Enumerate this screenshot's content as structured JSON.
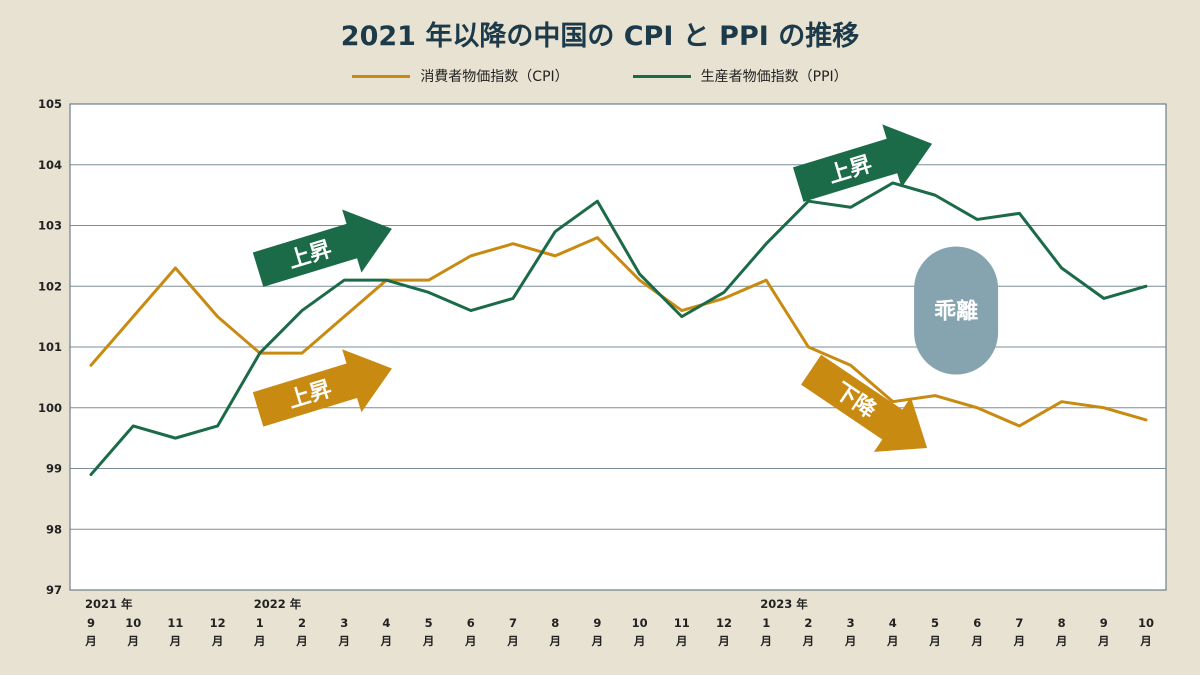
{
  "chart_data": {
    "type": "line",
    "title": "2021 年以降の中国の CPI と PPI の推移",
    "ylim": [
      97,
      105
    ],
    "yticks": [
      97,
      98,
      99,
      100,
      101,
      102,
      103,
      104,
      105
    ],
    "x_labels": [
      {
        "year": "2021 年",
        "month": "9",
        "unit": "月"
      },
      {
        "year": "",
        "month": "10",
        "unit": "月"
      },
      {
        "year": "",
        "month": "11",
        "unit": "月"
      },
      {
        "year": "",
        "month": "12",
        "unit": "月"
      },
      {
        "year": "2022 年",
        "month": "1",
        "unit": "月"
      },
      {
        "year": "",
        "month": "2",
        "unit": "月"
      },
      {
        "year": "",
        "month": "3",
        "unit": "月"
      },
      {
        "year": "",
        "month": "4",
        "unit": "月"
      },
      {
        "year": "",
        "month": "5",
        "unit": "月"
      },
      {
        "year": "",
        "month": "6",
        "unit": "月"
      },
      {
        "year": "",
        "month": "7",
        "unit": "月"
      },
      {
        "year": "",
        "month": "8",
        "unit": "月"
      },
      {
        "year": "",
        "month": "9",
        "unit": "月"
      },
      {
        "year": "",
        "month": "10",
        "unit": "月"
      },
      {
        "year": "",
        "month": "11",
        "unit": "月"
      },
      {
        "year": "",
        "month": "12",
        "unit": "月"
      },
      {
        "year": "2023 年",
        "month": "1",
        "unit": "月"
      },
      {
        "year": "",
        "month": "2",
        "unit": "月"
      },
      {
        "year": "",
        "month": "3",
        "unit": "月"
      },
      {
        "year": "",
        "month": "4",
        "unit": "月"
      },
      {
        "year": "",
        "month": "5",
        "unit": "月"
      },
      {
        "year": "",
        "month": "6",
        "unit": "月"
      },
      {
        "year": "",
        "month": "7",
        "unit": "月"
      },
      {
        "year": "",
        "month": "8",
        "unit": "月"
      },
      {
        "year": "",
        "month": "9",
        "unit": "月"
      },
      {
        "year": "",
        "month": "10",
        "unit": "月"
      }
    ],
    "series": [
      {
        "name": "消費者物価指数（CPI）",
        "color": "#c98a12",
        "values": [
          100.7,
          101.5,
          102.3,
          101.5,
          100.9,
          100.9,
          101.5,
          102.1,
          102.1,
          102.5,
          102.7,
          102.5,
          102.8,
          102.1,
          101.6,
          101.8,
          102.1,
          101.0,
          100.7,
          100.1,
          100.2,
          100.0,
          99.7,
          100.1,
          100.0,
          99.8
        ]
      },
      {
        "name": "生産者物価指数（PPI）",
        "color": "#1b6b48",
        "values": [
          98.9,
          99.7,
          99.5,
          99.7,
          100.9,
          101.6,
          102.1,
          102.1,
          101.9,
          101.6,
          101.8,
          102.9,
          103.4,
          102.2,
          101.5,
          101.9,
          102.7,
          103.4,
          103.3,
          103.7,
          103.5,
          103.1,
          103.2,
          102.3,
          101.8,
          102.0
        ]
      }
    ],
    "grid": true,
    "legend_position": "top-center",
    "annotations": [
      {
        "text": "上昇",
        "type": "arrow-up",
        "color": "#1b6b48",
        "x_index": 5.5,
        "y": 102.6
      },
      {
        "text": "上昇",
        "type": "arrow-up",
        "color": "#c98a12",
        "x_index": 5.5,
        "y": 100.3
      },
      {
        "text": "上昇",
        "type": "arrow-up",
        "color": "#1b6b48",
        "x_index": 18.3,
        "y": 104.0
      },
      {
        "text": "下降",
        "type": "arrow-down",
        "color": "#c98a12",
        "x_index": 18.4,
        "y": 100.0
      },
      {
        "text": "乖離",
        "type": "pill",
        "color": "#86a4b0",
        "x_index": 20.5,
        "y": 101.6
      }
    ]
  },
  "colors": {
    "background": "#e8e2d2",
    "plot_background": "#ffffff",
    "grid": "#7b8d98",
    "title": "#1c3a4a"
  }
}
